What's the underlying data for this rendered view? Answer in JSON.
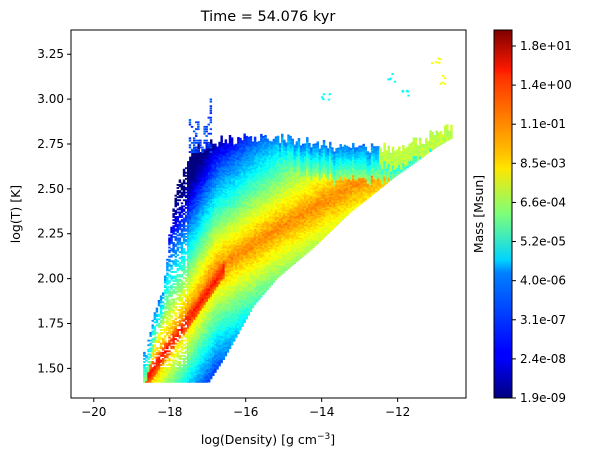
{
  "chart_data": {
    "type": "heatmap",
    "title": "Time = 54.076 kyr",
    "xlabel_main": "log(Density) [g cm",
    "xlabel_exp": "−3",
    "xlabel_close": "]",
    "ylabel": "log(T) [K]",
    "xlim": [
      -20.6,
      -10.2
    ],
    "ylim": [
      1.335,
      3.385
    ],
    "xticks": [
      -20,
      -18,
      -16,
      -14,
      -12
    ],
    "xtick_labels": [
      "−20",
      "−18",
      "−16",
      "−14",
      "−12"
    ],
    "yticks": [
      1.5,
      1.75,
      2.0,
      2.25,
      2.5,
      2.75,
      3.0,
      3.25
    ],
    "ytick_labels": [
      "1.50",
      "1.75",
      "2.00",
      "2.25",
      "2.50",
      "2.75",
      "3.00",
      "3.25"
    ],
    "grid": false,
    "colorbar": {
      "label": "Mass [Msun]",
      "colormap": "jet",
      "scale": "log",
      "tick_labels": [
        "1.9e-09",
        "2.4e-08",
        "3.1e-07",
        "4.0e-06",
        "5.2e-05",
        "6.6e-04",
        "8.5e-03",
        "1.1e-01",
        "1.4e+00",
        "1.8e+01"
      ]
    },
    "distribution": {
      "description_points_log_density_logT": [
        [
          -18.65,
          1.42
        ],
        [
          -17.0,
          2.02
        ],
        [
          -15.5,
          2.25
        ],
        [
          -13.0,
          2.55
        ],
        [
          -10.7,
          2.83
        ]
      ],
      "density_range": [
        -18.7,
        -10.6
      ],
      "temperature_range": [
        1.42,
        3.22
      ]
    }
  }
}
